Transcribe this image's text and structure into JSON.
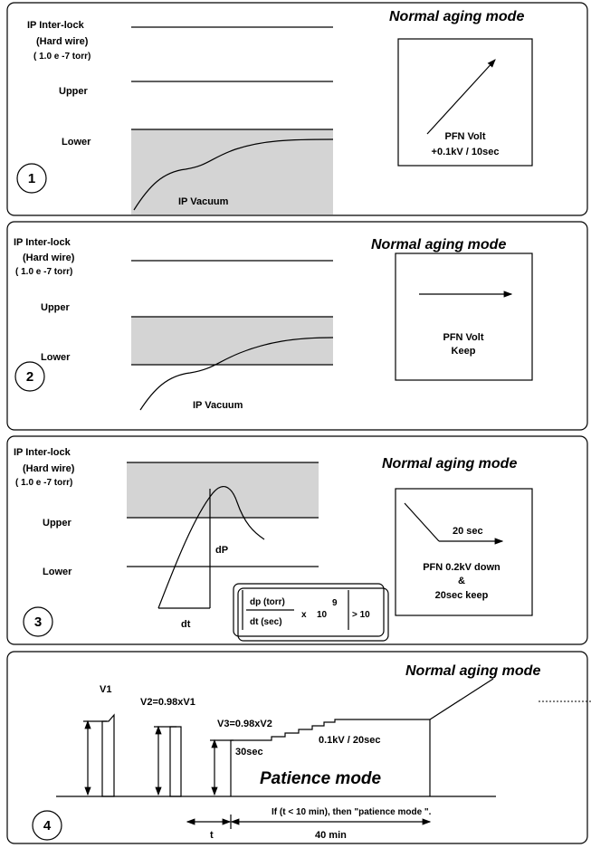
{
  "panels": [
    {
      "number": "1",
      "title": "Normal aging mode",
      "interlock": "IP Inter-lock",
      "hard_wire": "(Hard wire)",
      "pressure": "( 1.0 e -7 torr)",
      "upper": "Upper",
      "lower": "Lower",
      "curve_label": "IP Vacuum",
      "box_lines": [
        "PFN Volt",
        "+0.1kV / 10sec"
      ]
    },
    {
      "number": "2",
      "title": "Normal aging mode",
      "interlock": "IP Inter-lock",
      "hard_wire": "(Hard wire)",
      "pressure": "( 1.0 e -7 torr)",
      "upper": "Upper",
      "lower": "Lower",
      "curve_label": "IP Vacuum",
      "box_lines": [
        "PFN Volt",
        "Keep"
      ]
    },
    {
      "number": "3",
      "title": "Normal aging mode",
      "interlock": "IP Inter-lock",
      "hard_wire": "(Hard wire)",
      "pressure": "( 1.0 e -7 torr)",
      "upper": "Upper",
      "lower": "Lower",
      "dp_label": "dP",
      "dt_label": "dt",
      "formula": {
        "numerator": "dp (torr)",
        "denominator": "dt (sec)",
        "times": "x",
        "base": "10",
        "exponent": "9",
        "threshold": "> 10"
      },
      "box_lines": [
        "20 sec",
        "PFN 0.2kV down",
        "&",
        "20sec keep"
      ]
    },
    {
      "number": "4",
      "title": "Normal aging mode",
      "v1": "V1",
      "v2": "V2=0.98xV1",
      "v3": "V3=0.98xV2",
      "hold": "30sec",
      "step": "0.1kV / 20sec",
      "mode": "Patience mode",
      "condition": "If (t < 10 min), then \"patience mode \".",
      "t_label": "t",
      "duration": "40 min"
    }
  ]
}
